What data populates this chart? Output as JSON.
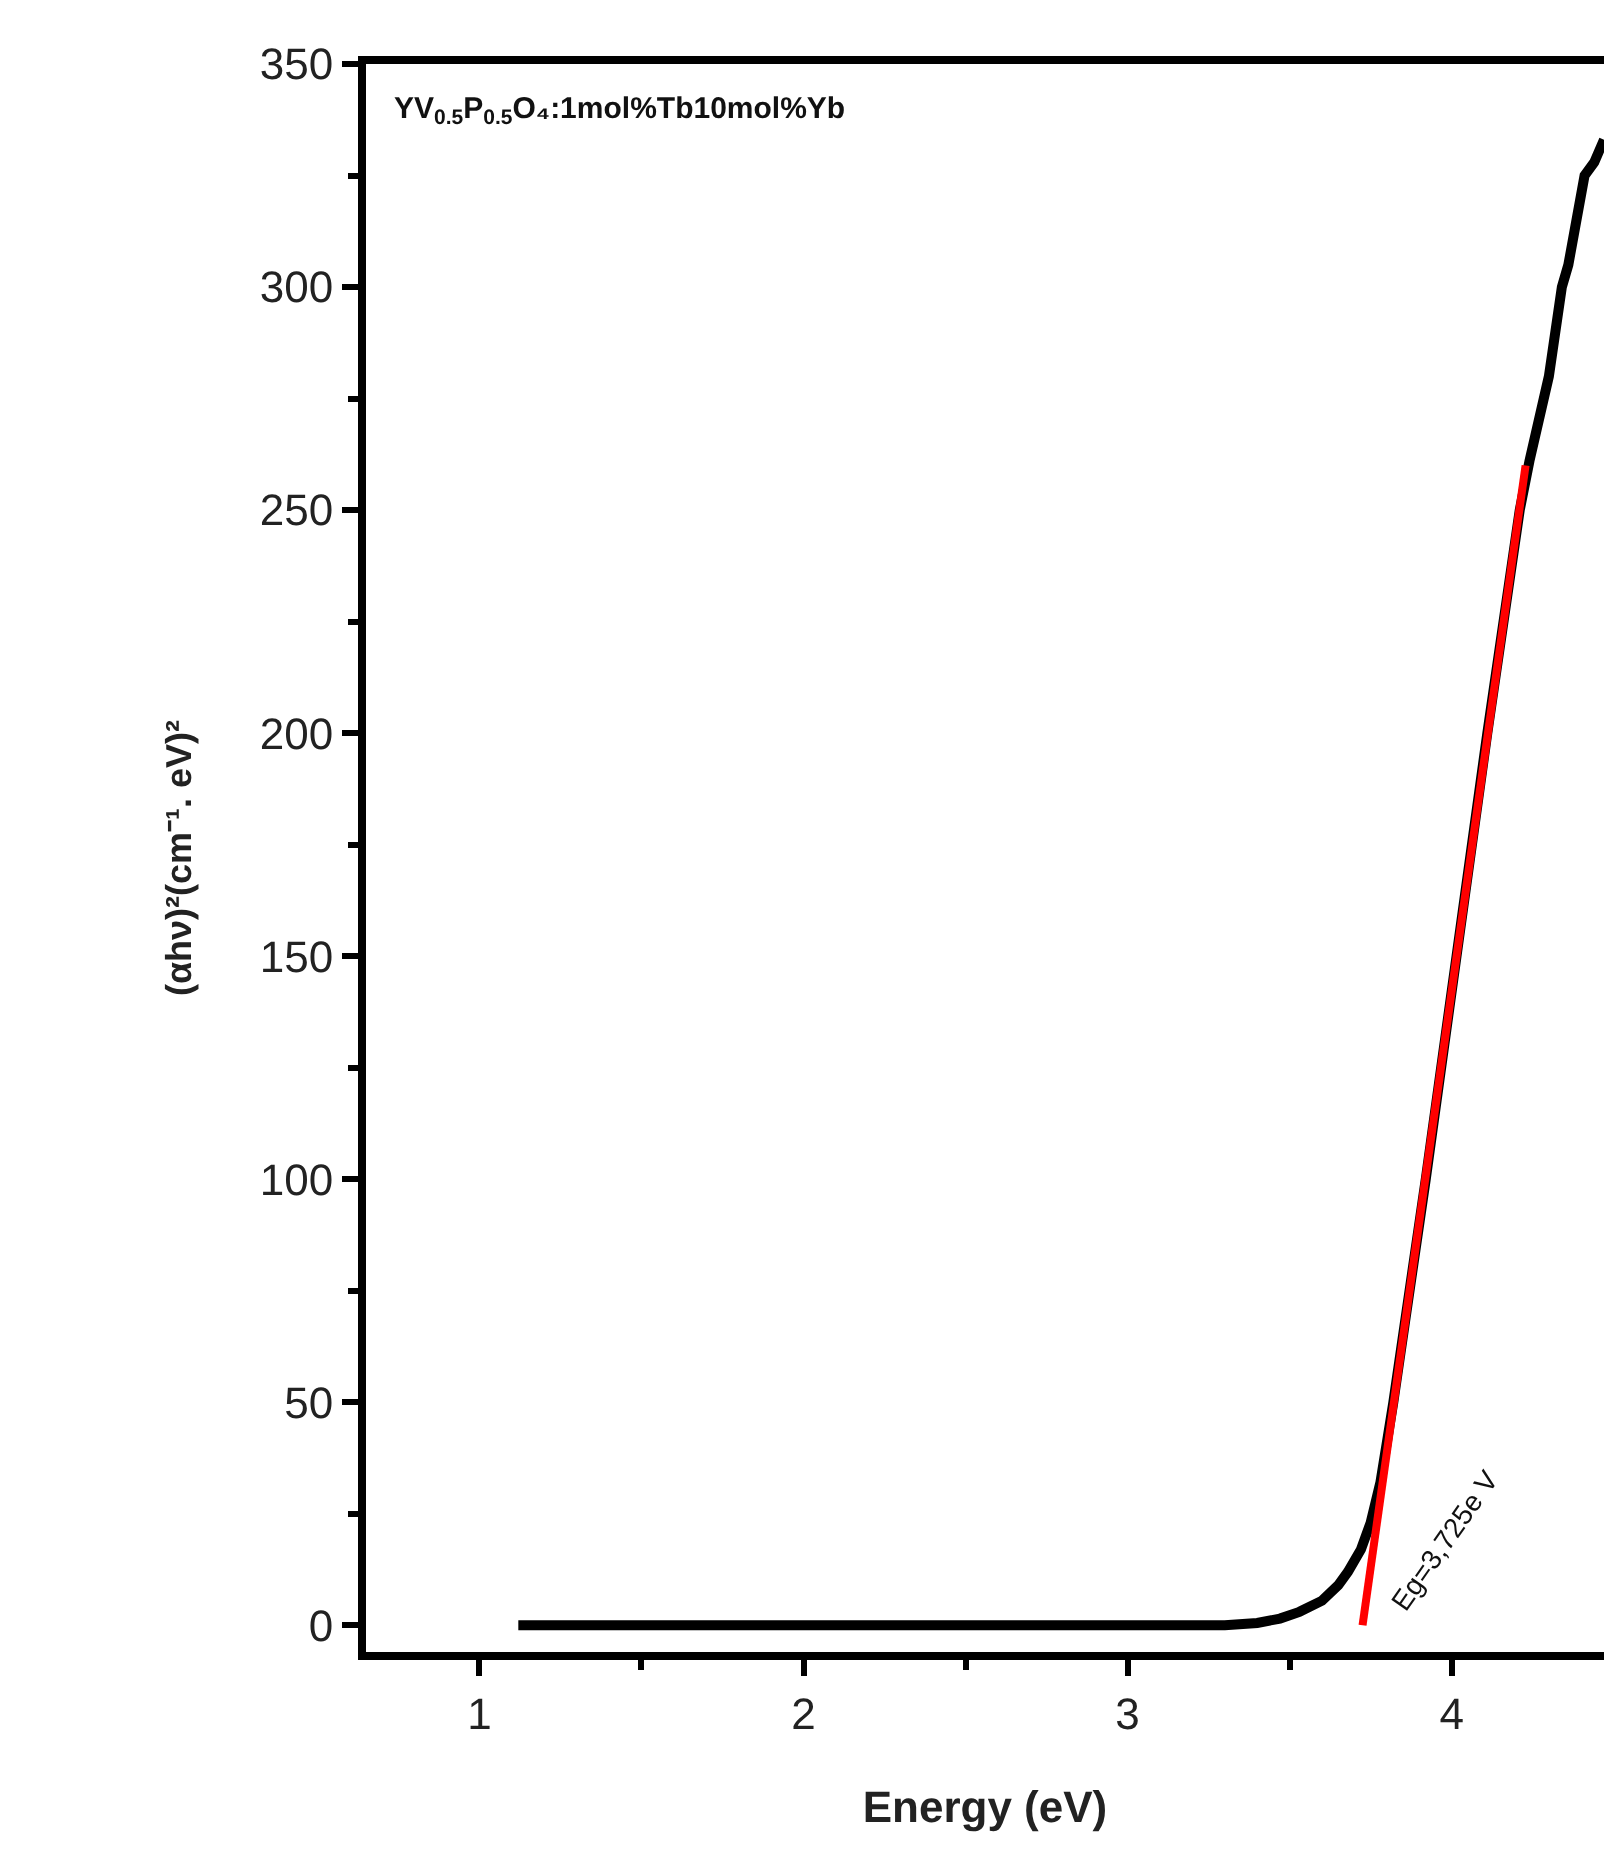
{
  "chart_data": {
    "type": "line",
    "xlabel": "Energy (eV)",
    "ylabel": "(αhν)²(cm⁻¹. eV)²",
    "annotations": [
      "YV$_{0.5}$P$_{0.5}$O₄:1mol%Tb10mol%Yb",
      {
        "text": "Eg=3,725e V",
        "x": 3.725,
        "y": 0
      }
    ],
    "series": [
      {
        "color": "#000000",
        "x": [
          1.12,
          1.5,
          2,
          2.5,
          3,
          3.3,
          3.4,
          3.47,
          3.53,
          3.6,
          3.65,
          3.68,
          3.72,
          3.75,
          3.78,
          3.82,
          3.92,
          4.015,
          4.11,
          4.21,
          4.24,
          4.3,
          4.34,
          4.36,
          4.41,
          4.44,
          4.47
        ],
        "values": [
          0,
          0,
          0,
          0,
          0,
          0,
          0.5,
          1.5,
          3,
          5.5,
          9,
          12,
          17,
          23,
          32,
          50,
          100,
          150,
          200,
          250,
          261,
          280,
          300,
          305,
          325,
          328,
          333
        ]
      },
      {
        "type": "line",
        "color": "#ff0000",
        "x": [
          3.725,
          4.228
        ],
        "values": [
          0,
          260
        ]
      }
    ],
    "xlim": [
      0.65,
      4.47
    ],
    "ylim": [
      -6,
      350
    ],
    "xticks": [
      1,
      2,
      3,
      4
    ],
    "yticks": [
      0,
      50,
      100,
      150,
      200,
      250,
      300,
      350
    ],
    "grid": false,
    "marker": "none",
    "line_style": "solid"
  }
}
